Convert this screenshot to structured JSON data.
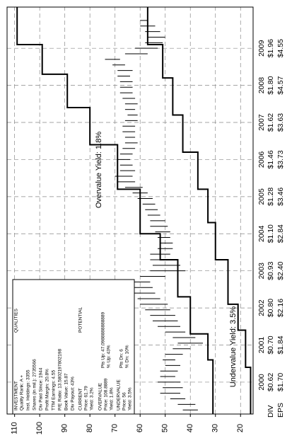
{
  "chart_data": {
    "type": "valuation",
    "xlim": [
      1999.14,
      2010.11
    ],
    "xticks": [
      {
        "value": 2000,
        "label": "2000"
      },
      {
        "value": 2001,
        "label": "2001"
      },
      {
        "value": 2002,
        "label": "2002"
      },
      {
        "value": 2003,
        "label": "2003"
      },
      {
        "value": 2004,
        "label": "2004"
      },
      {
        "value": 2005,
        "label": "2005"
      },
      {
        "value": 2006,
        "label": "2006"
      },
      {
        "value": 2007,
        "label": "2007"
      },
      {
        "value": 2008,
        "label": "2008"
      },
      {
        "value": 2009,
        "label": "2009"
      }
    ],
    "ylim": [
      15,
      113
    ],
    "yticks": [
      20,
      30,
      40,
      50,
      60,
      70,
      80,
      90,
      100,
      110
    ],
    "grid": true,
    "dividends": {
      "name": "DIV",
      "values": [
        0.62,
        0.7,
        0.8,
        0.93,
        1.1,
        1.28,
        1.46,
        1.62,
        1.8,
        1.96
      ],
      "value_labels": [
        "$0.62",
        "$0.70",
        "$0.80",
        "$0.93",
        "$1.10",
        "$1.28",
        "$1.46",
        "$1.62",
        "$1.80",
        "$1.96"
      ]
    },
    "earnings": {
      "name": "EPS",
      "values": [
        1.7,
        1.84,
        2.16,
        2.4,
        2.84,
        3.46,
        3.73,
        3.63,
        4.57,
        4.55
      ],
      "value_labels": [
        "$1.70",
        "$1.84",
        "$2.16",
        "$2.40",
        "$2.84",
        "$3.46",
        "$3.73",
        "$3.63",
        "$4.57",
        "$4.55"
      ]
    },
    "price_bars": {
      "color": "#000000",
      "x": [
        1999.25,
        1999.4,
        1999.55,
        1999.7,
        1999.85,
        2000.0,
        2000.15,
        2000.3,
        2000.45,
        2000.6,
        2000.75,
        2000.9,
        2001.05,
        2001.2,
        2001.35,
        2001.5,
        2001.65,
        2001.8,
        2001.95,
        2002.1,
        2002.25,
        2002.4,
        2002.55,
        2002.7,
        2002.85,
        2003.0,
        2003.15,
        2003.3,
        2003.45,
        2003.6,
        2003.75,
        2003.9,
        2004.05,
        2004.2,
        2004.35,
        2004.5,
        2004.65,
        2004.8,
        2004.95,
        2005.1,
        2005.25,
        2005.4,
        2005.55,
        2005.7,
        2005.85,
        2006.0,
        2006.15,
        2006.3,
        2006.45,
        2006.6,
        2006.75,
        2006.9,
        2007.05,
        2007.2,
        2007.35,
        2007.5,
        2007.65,
        2007.8,
        2007.95,
        2008.1,
        2008.25,
        2008.4,
        2008.55,
        2008.7,
        2008.85,
        2009.0,
        2009.15,
        2009.3,
        2009.45,
        2009.6,
        2009.75
      ],
      "low": [
        37,
        38,
        42,
        44,
        43,
        44,
        46,
        45,
        44,
        46,
        43,
        40,
        35,
        38,
        42,
        44,
        45,
        46,
        48,
        49,
        52,
        54,
        55,
        56,
        50,
        42,
        44,
        47,
        48,
        47,
        47,
        48,
        48,
        49,
        50,
        52,
        53,
        54,
        55,
        57,
        59,
        62,
        63,
        62,
        63,
        64,
        63,
        62,
        61,
        62,
        62,
        62,
        61,
        61,
        62,
        61,
        62,
        63,
        63,
        63,
        64,
        63,
        66,
        68,
        57,
        53,
        51,
        50,
        52,
        54,
        57
      ],
      "high": [
        43,
        45,
        48,
        52,
        51,
        53,
        52,
        52,
        50,
        51,
        50,
        47,
        45,
        47,
        50,
        53,
        55,
        56,
        58,
        60,
        61,
        63,
        64,
        66,
        60,
        56,
        55,
        56,
        56,
        53,
        52,
        53,
        54,
        56,
        56,
        57,
        58,
        59,
        61,
        63,
        66,
        69,
        70,
        68,
        68,
        69,
        68,
        67,
        66,
        66,
        67,
        67,
        66,
        65,
        66,
        66,
        67,
        68,
        68,
        68,
        69,
        69,
        71,
        74,
        66,
        62,
        58,
        57,
        58,
        60,
        60
      ]
    },
    "series": [
      {
        "name": "Overvalue Yield: 1.8%",
        "color": "#000000",
        "x": [
          1999.14,
          2000.6,
          2001.3,
          2002.3,
          2003.3,
          2004.0,
          2005.2,
          2006.4,
          2007.4,
          2008.3,
          2009.1
        ],
        "values": [
          31,
          33,
          40,
          45,
          52,
          60,
          69,
          80,
          89,
          99,
          109
        ]
      },
      {
        "name": "Undervalue Yield: 3.5%",
        "color": "#000000",
        "x": [
          1999.14,
          2000.4,
          2001.4,
          2002.1,
          2003.3,
          2004.3,
          2005.2,
          2006.2,
          2007.2,
          2008.2,
          2009.1
        ],
        "values": [
          16,
          18,
          21,
          25,
          30,
          33,
          37,
          43,
          47,
          51,
          57
        ]
      }
    ]
  },
  "info_box": {
    "investment": {
      "heading": "INVESTMENT",
      "right_heading": "QUALITIES",
      "lines": [
        "Quality Rank: A +",
        "Inst. Holdings: 3355",
        "Shares (in mil.): 2735566",
        "Div Paid Since: 1944",
        "Profit Margin: 20.8%",
        "TTM Earnings: 4.55",
        "P/E Ratio: 13.5802197802198",
        "Book Value: 15.87",
        "Div Payout: 43%"
      ]
    },
    "current": {
      "heading": "CURRENT",
      "right_heading": "POTENTIAL",
      "lines": [
        "Price: 61.79",
        "Yield: 3.2%"
      ]
    },
    "overvalue": {
      "heading": "OVERVALUE",
      "lines": [
        "Price: 108.8889",
        "Yield: 1.8%"
      ],
      "right_lines": [
        "Pts Up: 47.0988888888889",
        "% Up: 43%"
      ]
    },
    "undervalue": {
      "heading": "UNDERVALUE",
      "lines": [
        "Price: 56",
        "Yield: 3.5%"
      ],
      "right_lines": [
        "Pts Dn: 6",
        "% Dn: 10%"
      ]
    }
  }
}
